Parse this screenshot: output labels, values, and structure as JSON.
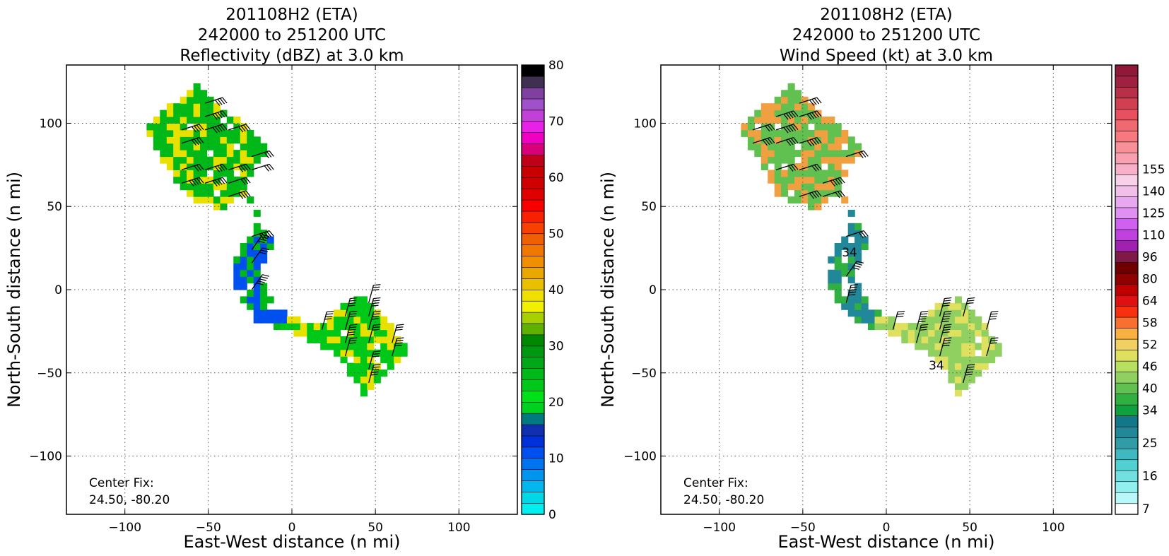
{
  "chart_data": [
    {
      "type": "heatmap",
      "title_lines": [
        "201108H2 (ETA)",
        "242000 to 251200 UTC",
        "Reflectivity (dBZ) at 3.0 km"
      ],
      "xlabel": "East-West distance (n mi)",
      "ylabel": "North-South distance (n mi)",
      "xlim": [
        -135,
        135
      ],
      "ylim": [
        -135,
        135
      ],
      "xticks": [
        -100,
        -50,
        0,
        50,
        100
      ],
      "yticks": [
        -100,
        -50,
        0,
        50,
        100
      ],
      "xtick_labels": [
        "−100",
        "−50",
        "0",
        "50",
        "100"
      ],
      "ytick_labels": [
        "−100",
        "−50",
        "0",
        "50",
        "100"
      ],
      "grid": true,
      "center_fix": [
        "Center Fix:",
        "24.50, -80.20"
      ],
      "colorbar": {
        "ticks": [
          0,
          10,
          20,
          30,
          40,
          50,
          60,
          70,
          80
        ],
        "tick_labels": [
          "0",
          "10",
          "20",
          "30",
          "40",
          "50",
          "60",
          "70",
          "80"
        ],
        "colors": [
          "#00eeee",
          "#00d8e8",
          "#00b8ee",
          "#0096f0",
          "#0074f0",
          "#0050f0",
          "#0030d8",
          "#1030b0",
          "#007a80",
          "#00d020",
          "#00e018",
          "#00c818",
          "#00b818",
          "#00a818",
          "#009810",
          "#008800",
          "#60b000",
          "#a8d000",
          "#f0f000",
          "#f0e000",
          "#e8c000",
          "#e8a800",
          "#f09000",
          "#f07800",
          "#f06000",
          "#f84000",
          "#f82000",
          "#f80000",
          "#e00000",
          "#d00000",
          "#c80000",
          "#c00018",
          "#d80078",
          "#f000c0",
          "#e820e8",
          "#c040d8",
          "#a050c8",
          "#8040a0",
          "#403050",
          "#000000"
        ]
      },
      "regions": [
        {
          "name": "north-band",
          "center": [
            -35,
            80
          ],
          "base_color": "#00b818",
          "accent_color": "#e8e000"
        },
        {
          "name": "middle-band",
          "center": [
            -25,
            20
          ],
          "base_color": "#0050f0",
          "accent_color": "#00b818"
        },
        {
          "name": "south-band",
          "center": [
            40,
            -30
          ],
          "base_color": "#00c818",
          "accent_color": "#e8e000"
        }
      ]
    },
    {
      "type": "heatmap",
      "title_lines": [
        "201108H2 (ETA)",
        "242000 to 251200 UTC",
        "Wind Speed (kt) at 3.0 km"
      ],
      "xlabel": "East-West distance (n mi)",
      "ylabel": "North-South distance (n mi)",
      "xlim": [
        -135,
        135
      ],
      "ylim": [
        -135,
        135
      ],
      "xticks": [
        -100,
        -50,
        0,
        50,
        100
      ],
      "yticks": [
        -100,
        -50,
        0,
        50,
        100
      ],
      "xtick_labels": [
        "−100",
        "−50",
        "0",
        "50",
        "100"
      ],
      "ytick_labels": [
        "−100",
        "−50",
        "0",
        "50",
        "100"
      ],
      "grid": true,
      "center_fix": [
        "Center Fix:",
        "24.50, -80.20"
      ],
      "contour_labels": [
        {
          "text": "34",
          "x": -22,
          "y": 20
        },
        {
          "text": "34",
          "x": 30,
          "y": -48
        }
      ],
      "colorbar": {
        "tick_labels": [
          "7",
          "16",
          "25",
          "34",
          "40",
          "46",
          "52",
          "58",
          "64",
          "80",
          "96",
          "110",
          "125",
          "140",
          "155"
        ],
        "tick_bins": [
          0,
          3,
          6,
          9,
          11,
          13,
          15,
          17,
          19,
          21,
          23,
          25,
          27,
          29,
          31
        ],
        "colors": [
          "#ffffff",
          "#b8f8f8",
          "#90f0f0",
          "#70e0e0",
          "#50d0d0",
          "#40b8c0",
          "#309ca8",
          "#208898",
          "#107888",
          "#10a040",
          "#30b040",
          "#60c050",
          "#90d060",
          "#b8e060",
          "#e0e060",
          "#f0d060",
          "#f8b040",
          "#f87030",
          "#f83010",
          "#e01010",
          "#c00000",
          "#900000",
          "#700000",
          "#801848",
          "#a020b0",
          "#c040e0",
          "#d060f0",
          "#e090f0",
          "#e8a8f0",
          "#f0c0e8",
          "#f8d0e8",
          "#f8b0c8",
          "#f8a0b0",
          "#f89098",
          "#f87880",
          "#f06870",
          "#e85060",
          "#d04050",
          "#b83048",
          "#a02040",
          "#901838"
        ]
      },
      "regions": [
        {
          "name": "north-band",
          "center": [
            -45,
            75
          ],
          "base_color": "#60c050",
          "accent_color": "#f0a040"
        },
        {
          "name": "middle-band",
          "center": [
            -25,
            20
          ],
          "base_color": "#208898",
          "accent_color": "#30b040"
        },
        {
          "name": "south-band",
          "center": [
            35,
            -30
          ],
          "base_color": "#90d060",
          "accent_color": "#e0e060"
        }
      ]
    }
  ]
}
